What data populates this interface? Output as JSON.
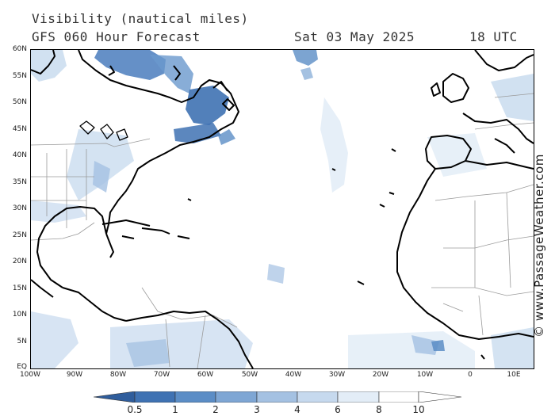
{
  "header": {
    "title": "Visibility (nautical miles)",
    "subtitle": "GFS 060 Hour Forecast",
    "date": "Sat 03 May 2025",
    "time": "18 UTC"
  },
  "credit": "© www.PassageWeather.com",
  "axes": {
    "latitude_labels": [
      "60N",
      "55N",
      "50N",
      "45N",
      "40N",
      "35N",
      "30N",
      "25N",
      "20N",
      "15N",
      "10N",
      "5N",
      "EQ"
    ],
    "longitude_labels": [
      "100W",
      "90W",
      "80W",
      "70W",
      "60W",
      "50W",
      "40W",
      "30W",
      "20W",
      "10W",
      "0",
      "10E"
    ],
    "lat_range": [
      0,
      60
    ],
    "lon_range": [
      -100,
      15
    ]
  },
  "legend": {
    "labels": [
      "0.5",
      "1",
      "2",
      "3",
      "4",
      "6",
      "8",
      "10"
    ],
    "colors": [
      "#2f5d9c",
      "#3f72b3",
      "#5b8dc6",
      "#7ea6d4",
      "#a4c1e2",
      "#c6d9ee",
      "#e3edf7",
      "#ffffff"
    ]
  },
  "colors": {
    "land_outline": "#000000",
    "borders": "#9a9a9a",
    "low_visibility": "#3f72b3",
    "moderate_visibility": "#7ea6d4",
    "light_haze": "#c6d9ee"
  }
}
